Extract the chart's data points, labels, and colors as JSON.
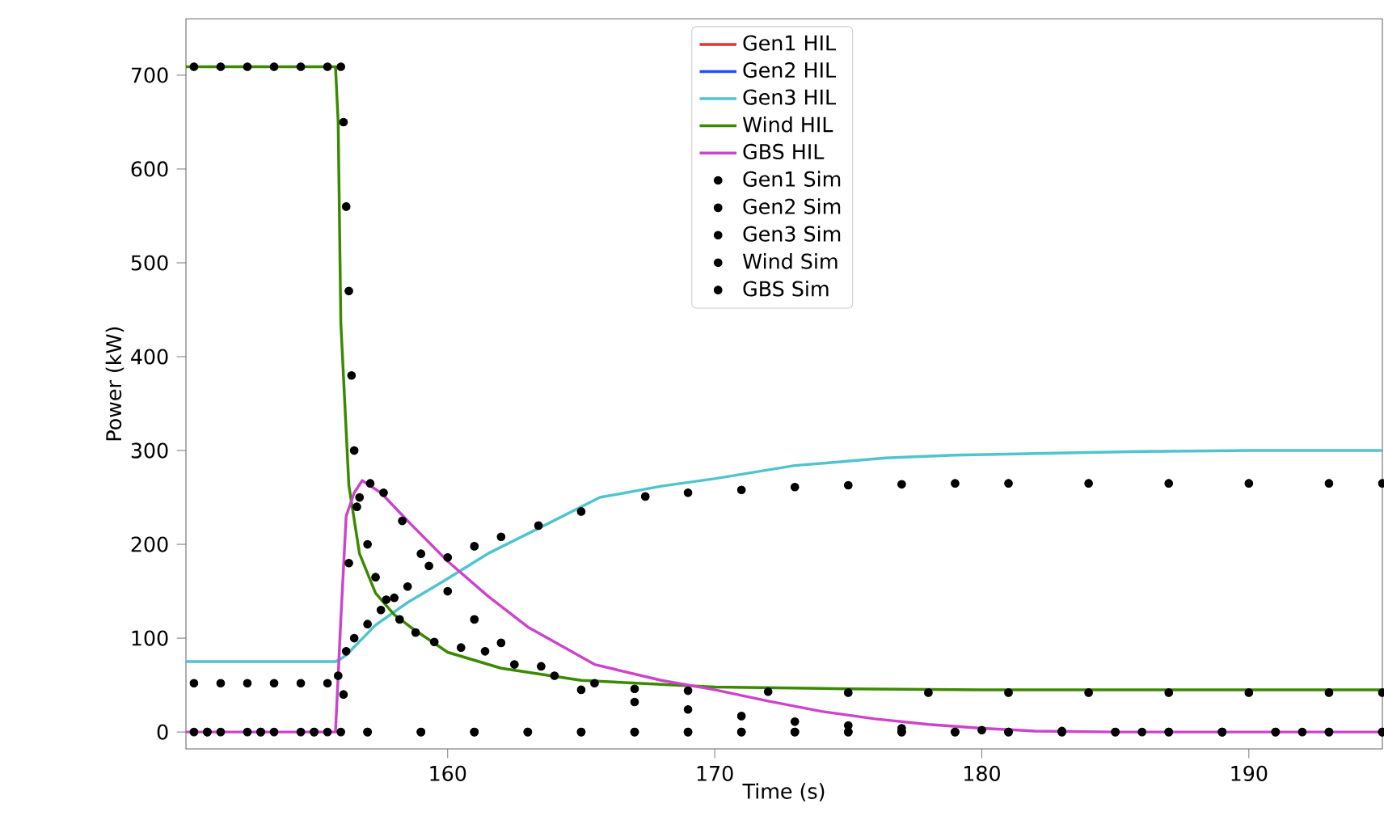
{
  "chart_data": {
    "type": "line",
    "xlabel": "Time (s)",
    "ylabel": "Power (kW)",
    "xlim": [
      150.2,
      195
    ],
    "ylim": [
      -18,
      760
    ],
    "xticks": [
      160,
      170,
      180,
      190
    ],
    "yticks": [
      0,
      100,
      200,
      300,
      400,
      500,
      600,
      700
    ],
    "grid": false,
    "legend": "top",
    "line_style": "solid",
    "series": [
      {
        "name": "Gen1 HIL",
        "color": "#e8312b",
        "values": [
          null,
          null
        ]
      },
      {
        "name": "Gen2 HIL",
        "color": "#1f4fff",
        "values": [
          null,
          null
        ]
      },
      {
        "name": "Gen3 HIL",
        "color": "#4fc4cf",
        "x": [
          150.2,
          155.8,
          156.0,
          156.2,
          157.3,
          158.5,
          159.8,
          161.5,
          163.4,
          165.7,
          168,
          170,
          173,
          176.4,
          179,
          182.4,
          186,
          190,
          195
        ],
        "values": [
          75,
          75,
          78,
          82,
          114,
          138,
          160,
          190,
          217,
          250,
          262,
          270,
          284,
          292,
          295,
          297,
          299,
          300,
          300
        ]
      },
      {
        "name": "Wind HIL",
        "color": "#3a8a00",
        "x": [
          150.2,
          155.8,
          155.9,
          156.0,
          156.3,
          156.7,
          157.3,
          158.0,
          158.7,
          160,
          162,
          165,
          170,
          175,
          180,
          185,
          190,
          195
        ],
        "values": [
          709,
          709,
          650,
          436,
          263,
          190,
          148,
          125,
          110,
          85,
          68,
          55,
          48,
          46,
          45,
          45,
          45,
          45
        ]
      },
      {
        "name": "GBS HIL",
        "color": "#cc44cc",
        "x": [
          150.2,
          155.8,
          156.0,
          156.2,
          156.5,
          156.8,
          157.5,
          158.5,
          160,
          161.5,
          163,
          165.5,
          168,
          170,
          172,
          174,
          176,
          178,
          180,
          182,
          185,
          190,
          195
        ],
        "values": [
          0,
          0,
          120,
          230,
          255,
          268,
          255,
          225,
          182,
          145,
          112,
          72,
          55,
          45,
          33,
          22,
          14,
          8,
          4,
          1,
          0,
          0,
          0
        ]
      },
      {
        "name": "Gen1 Sim",
        "type": "scatter",
        "marker": "circle",
        "color": "#000000",
        "x": [
          151,
          153,
          155,
          157,
          159,
          161,
          163,
          165,
          167,
          169,
          171,
          173,
          175,
          177,
          179,
          181,
          183,
          185,
          187,
          189,
          191,
          193,
          195
        ],
        "values": [
          0,
          0,
          0,
          0,
          0,
          0,
          0,
          0,
          0,
          0,
          0,
          0,
          0,
          0,
          0,
          0,
          0,
          0,
          0,
          0,
          0,
          0,
          0
        ]
      },
      {
        "name": "Gen2 Sim",
        "type": "scatter",
        "marker": "circle",
        "color": "#000000",
        "x": [
          151,
          153,
          155,
          157,
          159,
          161,
          163,
          165,
          167,
          169,
          171,
          173,
          175,
          177,
          179,
          181,
          183,
          185,
          187,
          189,
          191,
          193,
          195
        ],
        "values": [
          0,
          0,
          0,
          0,
          0,
          0,
          0,
          0,
          0,
          0,
          0,
          0,
          0,
          0,
          0,
          0,
          0,
          0,
          0,
          0,
          0,
          0,
          0
        ]
      },
      {
        "name": "Gen3 Sim",
        "type": "scatter",
        "marker": "circle",
        "color": "#000000",
        "x": [
          150.5,
          151.5,
          152.5,
          153.5,
          154.5,
          155.5,
          155.9,
          156.2,
          156.5,
          157,
          157.5,
          158,
          158.5,
          159.3,
          160,
          161,
          162,
          163.4,
          165,
          167.4,
          169,
          171,
          173,
          175,
          177,
          179,
          181,
          184,
          187,
          190,
          193,
          195
        ],
        "values": [
          52,
          52,
          52,
          52,
          52,
          52,
          60,
          86,
          100,
          115,
          130,
          143,
          155,
          177,
          186,
          198,
          208,
          220,
          235,
          251,
          255,
          258,
          261,
          263,
          264,
          265,
          265,
          265,
          265,
          265,
          265,
          265
        ]
      },
      {
        "name": "Wind Sim",
        "type": "scatter",
        "marker": "circle",
        "color": "#000000",
        "x": [
          150.5,
          151.5,
          152.5,
          153.5,
          154.5,
          155.5,
          156.0,
          156.1,
          156.2,
          156.3,
          156.4,
          156.5,
          156.7,
          157,
          157.3,
          157.7,
          158.2,
          158.8,
          159.5,
          160.5,
          161.4,
          162.5,
          164,
          165.5,
          167,
          169,
          172,
          175,
          178,
          181,
          184,
          187,
          190,
          193,
          195
        ],
        "values": [
          709,
          709,
          709,
          709,
          709,
          709,
          709,
          650,
          560,
          470,
          380,
          300,
          250,
          200,
          165,
          141,
          120,
          106,
          96,
          90,
          86,
          72,
          60,
          52,
          46,
          44,
          43,
          42,
          42,
          42,
          42,
          42,
          42,
          42,
          42
        ]
      },
      {
        "name": "GBS Sim",
        "type": "scatter",
        "marker": "circle",
        "color": "#000000",
        "x": [
          150.5,
          151.5,
          152.5,
          153.5,
          154.5,
          155.5,
          156.0,
          156.1,
          156.3,
          156.6,
          157.1,
          157.6,
          158.3,
          159,
          160,
          161,
          162,
          163.5,
          165,
          167,
          169,
          171,
          173,
          175,
          177,
          180,
          183,
          186,
          189,
          192,
          195
        ],
        "values": [
          0,
          0,
          0,
          0,
          0,
          0,
          0,
          40,
          180,
          240,
          265,
          255,
          225,
          190,
          150,
          120,
          95,
          70,
          45,
          32,
          24,
          17,
          11,
          7,
          4,
          2,
          1,
          0,
          0,
          0,
          0
        ]
      }
    ]
  }
}
